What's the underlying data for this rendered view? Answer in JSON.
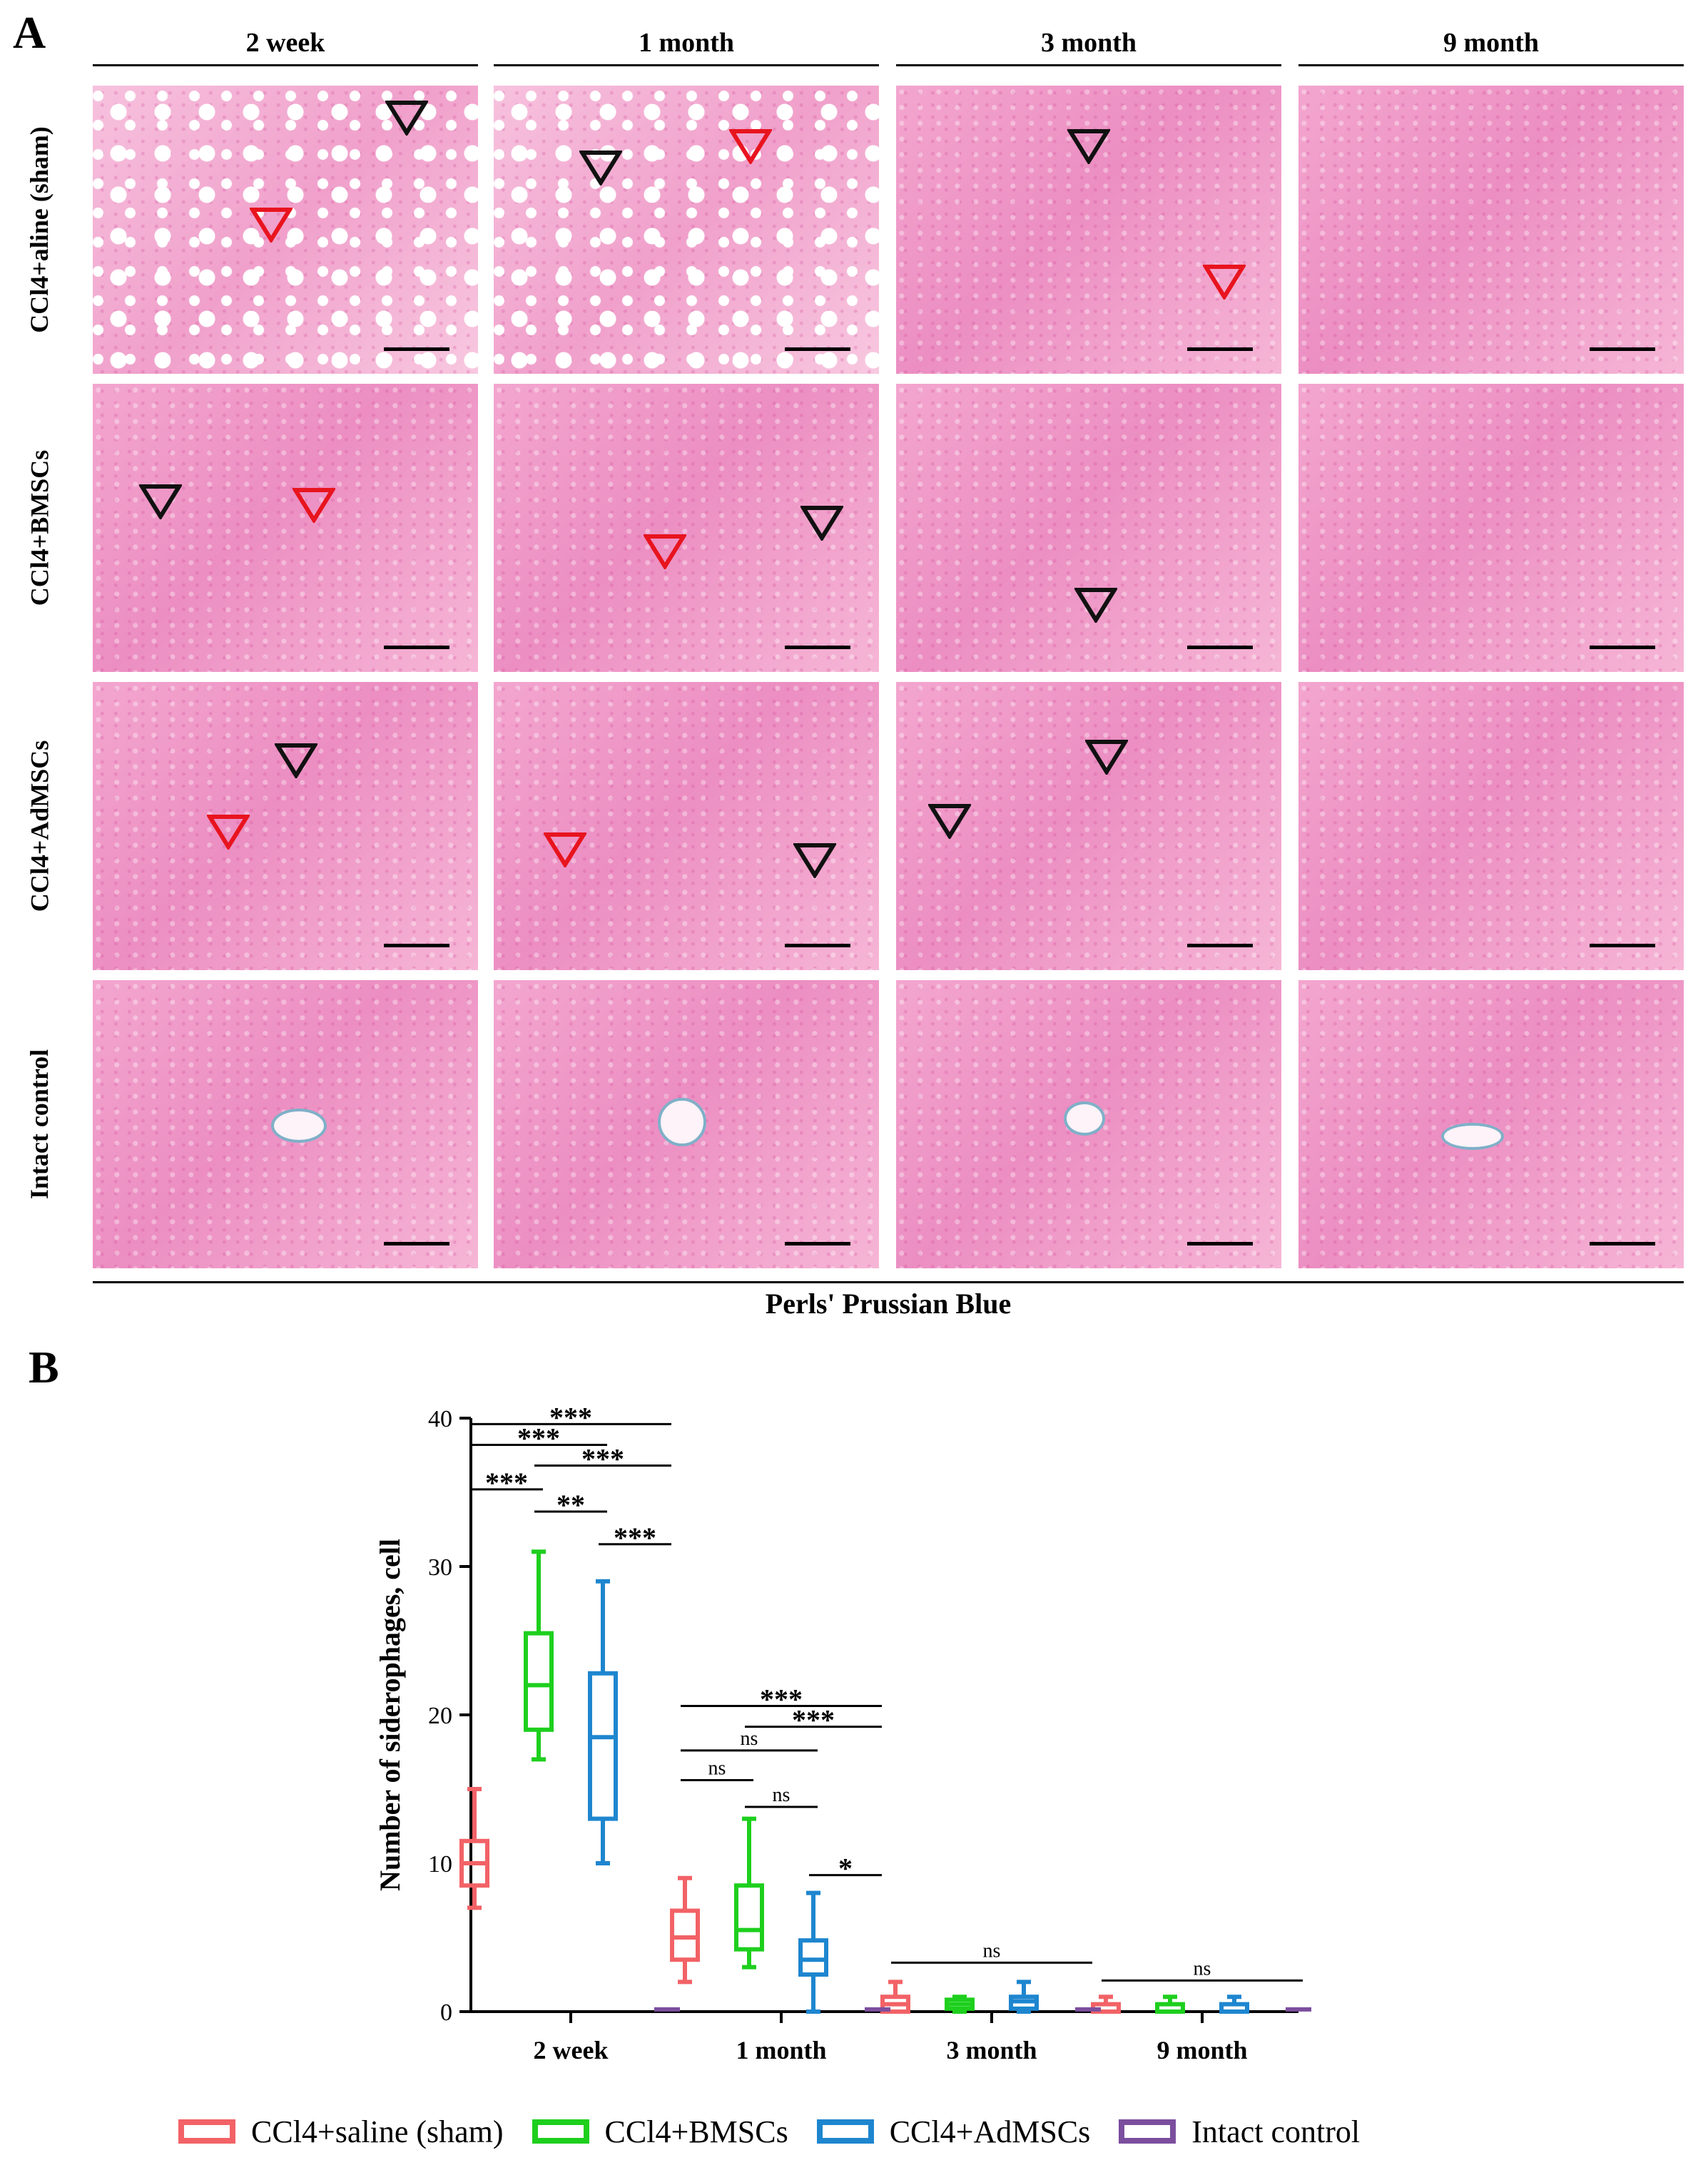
{
  "panelA": {
    "letter": "A",
    "columns": [
      "2 week",
      "1 month",
      "3 month",
      "9 month"
    ],
    "rows": [
      "CCl4+aline (sham)",
      "CCl4+BMSCs",
      "CCl4+AdMSCs",
      "Intact control"
    ],
    "stain": "Perls' Prussian Blue"
  },
  "panelB": {
    "letter": "B"
  },
  "chart_data": {
    "type": "box",
    "ylabel": "Number of siderophages, cell",
    "xlabel": "",
    "ylim": [
      0,
      40
    ],
    "yticks": [
      0,
      10,
      20,
      30,
      40
    ],
    "categories": [
      "2 week",
      "1 month",
      "3 month",
      "9 month"
    ],
    "grid": false,
    "legend_position": "bottom",
    "series": [
      {
        "name": "CCl4+saline (sham)",
        "color": "#f26266",
        "boxes": [
          {
            "min": 7,
            "q1": 8.5,
            "median": 10,
            "q3": 11.5,
            "max": 15
          },
          {
            "min": 2,
            "q1": 3.5,
            "median": 5,
            "q3": 6.8,
            "max": 9
          },
          {
            "min": 0,
            "q1": 0,
            "median": 0.5,
            "q3": 1,
            "max": 2
          },
          {
            "min": 0,
            "q1": 0,
            "median": 0,
            "q3": 0.5,
            "max": 1
          }
        ]
      },
      {
        "name": "CCl4+BMSCs",
        "color": "#1ecf1e",
        "boxes": [
          {
            "min": 17,
            "q1": 19,
            "median": 22,
            "q3": 25.5,
            "max": 31
          },
          {
            "min": 3,
            "q1": 4.2,
            "median": 5.5,
            "q3": 8.5,
            "max": 13
          },
          {
            "min": 0,
            "q1": 0.2,
            "median": 0.5,
            "q3": 0.8,
            "max": 1
          },
          {
            "min": 0,
            "q1": 0,
            "median": 0,
            "q3": 0.5,
            "max": 1
          }
        ]
      },
      {
        "name": "CCl4+AdMSCs",
        "color": "#1e86cf",
        "boxes": [
          {
            "min": 10,
            "q1": 13,
            "median": 18.5,
            "q3": 22.8,
            "max": 29
          },
          {
            "min": 0,
            "q1": 2.5,
            "median": 3.5,
            "q3": 4.8,
            "max": 8
          },
          {
            "min": 0,
            "q1": 0.2,
            "median": 0.7,
            "q3": 1,
            "max": 2
          },
          {
            "min": 0,
            "q1": 0,
            "median": 0,
            "q3": 0.5,
            "max": 1
          }
        ]
      },
      {
        "name": "Intact control",
        "color": "#7b4e9e",
        "boxes": [
          {
            "min": 0,
            "q1": 0,
            "median": 0,
            "q3": 0.15,
            "max": 0.15
          },
          {
            "min": 0,
            "q1": 0,
            "median": 0,
            "q3": 0.15,
            "max": 0.15
          },
          {
            "min": 0,
            "q1": 0,
            "median": 0,
            "q3": 0.15,
            "max": 0.15
          },
          {
            "min": 0,
            "q1": 0,
            "median": 0,
            "q3": 0.15,
            "max": 0.15
          }
        ]
      }
    ],
    "annotations": [
      {
        "group": 0,
        "from": 0,
        "to": 3,
        "y": 39.6,
        "label": "***"
      },
      {
        "group": 0,
        "from": 0,
        "to": 2,
        "y": 38.2,
        "label": "***"
      },
      {
        "group": 0,
        "from": 1,
        "to": 3,
        "y": 36.8,
        "label": "***"
      },
      {
        "group": 0,
        "from": 0,
        "to": 1,
        "y": 35.2,
        "label": "***"
      },
      {
        "group": 0,
        "from": 1,
        "to": 2,
        "y": 33.7,
        "label": "**"
      },
      {
        "group": 0,
        "from": 2,
        "to": 3,
        "y": 31.5,
        "label": "***"
      },
      {
        "group": 1,
        "from": 0,
        "to": 3,
        "y": 20.6,
        "label": "***"
      },
      {
        "group": 1,
        "from": 1,
        "to": 3,
        "y": 19.2,
        "label": "***"
      },
      {
        "group": 1,
        "from": 0,
        "to": 2,
        "y": 17.6,
        "label": "ns"
      },
      {
        "group": 1,
        "from": 0,
        "to": 1,
        "y": 15.6,
        "label": "ns"
      },
      {
        "group": 1,
        "from": 1,
        "to": 2,
        "y": 13.8,
        "label": "ns"
      },
      {
        "group": 1,
        "from": 2,
        "to": 3,
        "y": 9.2,
        "label": "*"
      },
      {
        "group": 2,
        "from": 0,
        "to": 3,
        "y": 3.3,
        "label": "ns"
      },
      {
        "group": 3,
        "from": 0,
        "to": 3,
        "y": 2.1,
        "label": "ns"
      }
    ]
  }
}
